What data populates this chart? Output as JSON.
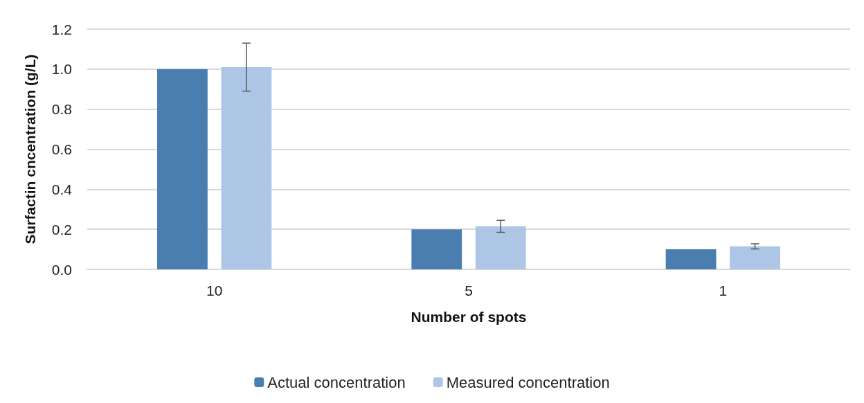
{
  "chart_data": {
    "type": "bar",
    "xlabel": "Number of spots",
    "ylabel": "Surfactin cncentration (g/L)",
    "categories": [
      "10",
      "5",
      "1"
    ],
    "series": [
      {
        "name": "Actual concentration",
        "color": "#4a7eb0",
        "values": [
          1.0,
          0.2,
          0.1
        ]
      },
      {
        "name": "Measured concentration",
        "color": "#adc6e5",
        "values": [
          1.01,
          0.215,
          0.115
        ],
        "errors": [
          0.12,
          0.03,
          0.013
        ]
      }
    ],
    "ylim": [
      0,
      1.2
    ],
    "yticks": [
      {
        "value": 0,
        "label": "0.0"
      },
      {
        "value": 0.2,
        "label": "0.2"
      },
      {
        "value": 0.4,
        "label": "0.4"
      },
      {
        "value": 0.6,
        "label": "0.6"
      },
      {
        "value": 0.8,
        "label": "0.8"
      },
      {
        "value": 1,
        "label": "1.0"
      },
      {
        "value": 1.2,
        "label": "1.2"
      }
    ],
    "grid": "y",
    "legend": "bottom"
  }
}
